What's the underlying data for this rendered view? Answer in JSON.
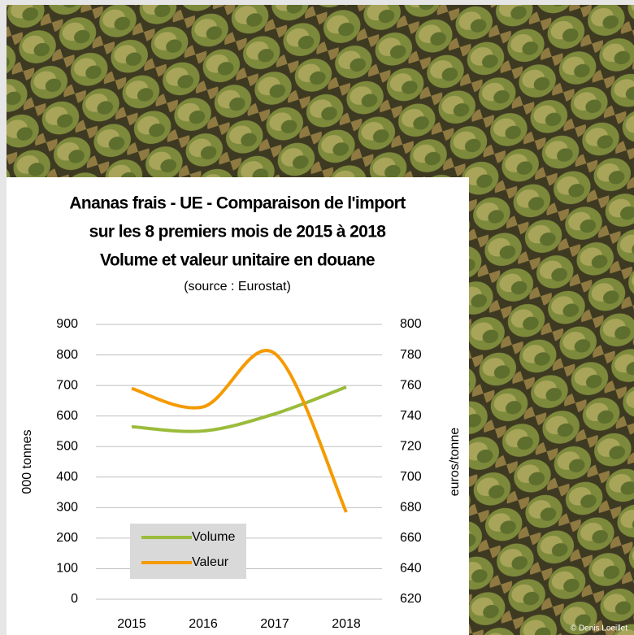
{
  "chart_data": {
    "type": "line",
    "title": [
      "Ananas frais - UE - Comparaison de l'import",
      "sur les 8 premiers mois de 2015 à 2018",
      "Volume et valeur unitaire en douane"
    ],
    "subtitle": "(source : Eurostat)",
    "y_label": "000 tonnes",
    "y2_label": "euros/tonne",
    "categories": [
      "2015",
      "2016",
      "2017",
      "2018"
    ],
    "series": [
      {
        "name": "Volume",
        "color": "#9bbb3b",
        "values": [
          565,
          551,
          607,
          695
        ]
      },
      {
        "name": "Valeur",
        "color": "#f59a00",
        "values": [
          758,
          746,
          781,
          677
        ],
        "axis": "y2"
      }
    ],
    "ylim": [
      0,
      900
    ],
    "yticks": [
      0,
      100,
      200,
      300,
      400,
      500,
      600,
      700,
      800,
      900
    ],
    "y2lim": [
      620,
      800
    ],
    "y2ticks": [
      620,
      640,
      660,
      680,
      700,
      720,
      740,
      760,
      780,
      800
    ],
    "grid": true
  },
  "credit": "© Denis Loeillet"
}
